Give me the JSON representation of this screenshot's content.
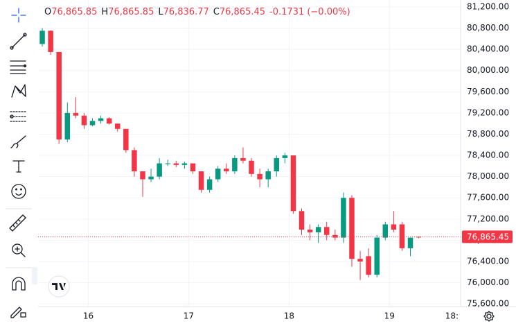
{
  "chart_data": {
    "type": "candlestick",
    "ohlc": [
      {
        "key": "O",
        "text": "76,865.85"
      },
      {
        "key": "H",
        "text": "76,865.85"
      },
      {
        "key": "L",
        "text": "76,836.77"
      },
      {
        "key": "C",
        "text": "76,865.45"
      }
    ],
    "change_text": "-0.1731 (−0.00%)",
    "last_price_label": "76,865.45",
    "up_color": "#089981",
    "down_color": "#f23645",
    "x": [
      13,
      15,
      17,
      19,
      21,
      23,
      25,
      27,
      29,
      31,
      33,
      35,
      37,
      39,
      41,
      43,
      45,
      47,
      49,
      51,
      53,
      55,
      57,
      59,
      61,
      63,
      65,
      67,
      69,
      71,
      73,
      75,
      77,
      79,
      81,
      83,
      85,
      87,
      89,
      91,
      93,
      95,
      97,
      99,
      101,
      103
    ],
    "open": [
      80500,
      80750,
      80350,
      78700,
      79200,
      79150,
      78970,
      79050,
      79100,
      79000,
      78900,
      78500,
      78100,
      77950,
      78000,
      78250,
      78250,
      78220,
      78250,
      78100,
      77750,
      77950,
      78150,
      78100,
      78350,
      78300,
      78050,
      77950,
      78100,
      78350,
      78400,
      77350,
      77000,
      76950,
      77050,
      76900,
      76850,
      77600,
      76450,
      76500,
      76150,
      76850,
      77100,
      77100,
      76650,
      76865.85
    ],
    "high": [
      80800,
      80760,
      80350,
      79400,
      79500,
      79200,
      79100,
      79150,
      79120,
      79000,
      78900,
      78550,
      78100,
      78150,
      78350,
      78320,
      78300,
      78280,
      78250,
      78100,
      78000,
      78200,
      78250,
      78400,
      78550,
      78350,
      78150,
      78150,
      78400,
      78450,
      78400,
      77400,
      77100,
      77100,
      77150,
      77000,
      77700,
      77650,
      76600,
      76650,
      76900,
      77150,
      77350,
      77150,
      76850,
      76865.85
    ],
    "low": [
      80450,
      80300,
      78620,
      78650,
      79100,
      78900,
      78950,
      79000,
      78980,
      78850,
      78450,
      78000,
      77620,
      77900,
      77950,
      78200,
      78180,
      78150,
      78050,
      77700,
      77700,
      77900,
      78050,
      78050,
      78250,
      78000,
      77800,
      77800,
      78000,
      78250,
      77300,
      76900,
      76800,
      76750,
      76800,
      76800,
      76750,
      76300,
      76050,
      76100,
      76100,
      76800,
      76950,
      76600,
      76500,
      76836.77
    ],
    "close": [
      80750,
      80350,
      78700,
      79200,
      79150,
      78970,
      79050,
      79100,
      79000,
      78900,
      78500,
      78100,
      77950,
      78000,
      78250,
      78250,
      78220,
      78250,
      78100,
      77750,
      77950,
      78150,
      78100,
      78350,
      78300,
      78050,
      77950,
      78100,
      78350,
      78400,
      77350,
      77000,
      76950,
      77050,
      76900,
      76850,
      77600,
      76450,
      76400,
      76150,
      76850,
      77100,
      77000,
      76650,
      76850,
      76865.45
    ],
    "xlim": [
      12,
      113
    ],
    "xticks": [
      {
        "value": 24,
        "label": "16"
      },
      {
        "value": 48,
        "label": "17"
      },
      {
        "value": 72,
        "label": "18"
      },
      {
        "value": 96,
        "label": "19"
      },
      {
        "value": 114,
        "label": "18:"
      }
    ],
    "ylim": [
      75550,
      81330
    ],
    "yticks": [
      {
        "value": 75600,
        "label": "75,600.00"
      },
      {
        "value": 76000,
        "label": "76,000.00"
      },
      {
        "value": 76400,
        "label": "76,400.00"
      },
      {
        "value": 76800,
        "label": "76,800.00"
      },
      {
        "value": 77200,
        "label": "77,200.00"
      },
      {
        "value": 77600,
        "label": "77,600.00"
      },
      {
        "value": 78000,
        "label": "78,000.00"
      },
      {
        "value": 78400,
        "label": "78,400.00"
      },
      {
        "value": 78800,
        "label": "78,800.00"
      },
      {
        "value": 79200,
        "label": "79,200.00"
      },
      {
        "value": 79600,
        "label": "79,600.00"
      },
      {
        "value": 80000,
        "label": "80,000.00"
      },
      {
        "value": 80400,
        "label": "80,400.00"
      },
      {
        "value": 80800,
        "label": "80,800.00"
      },
      {
        "value": 81200,
        "label": "81,200.00"
      }
    ],
    "grid": true
  }
}
